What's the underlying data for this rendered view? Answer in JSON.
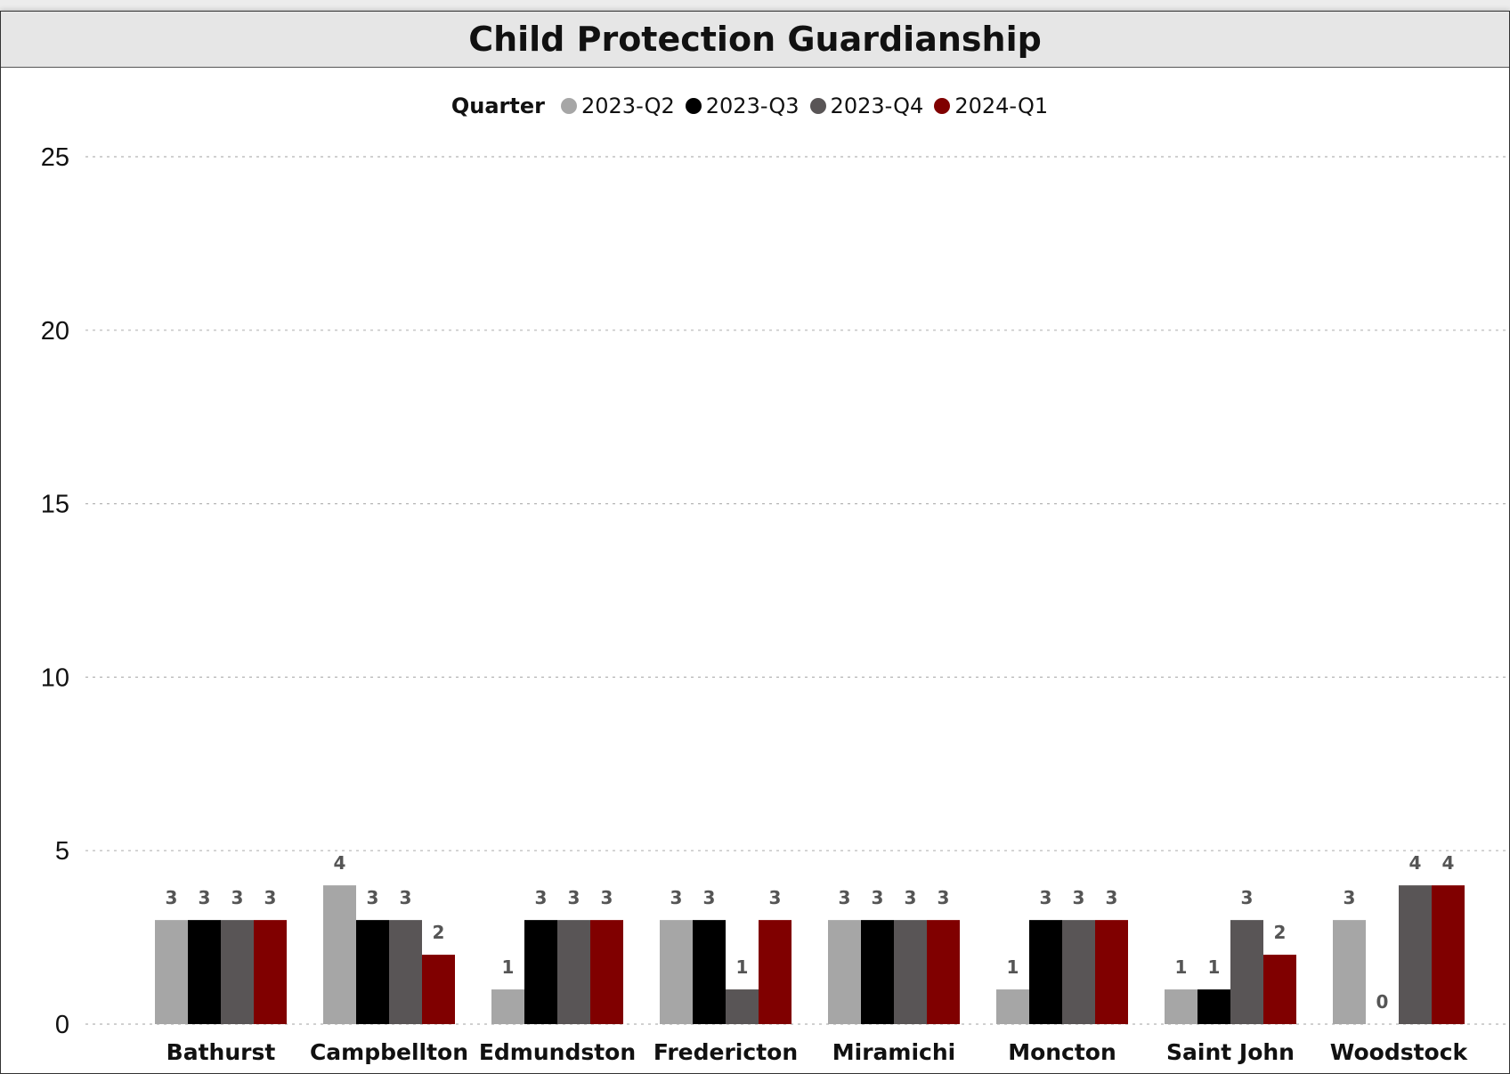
{
  "title": "Child Protection Guardianship",
  "legend": {
    "title": "Quarter",
    "items": [
      {
        "label": "2023-Q2",
        "color": "#a6a6a6"
      },
      {
        "label": "2023-Q3",
        "color": "#000000"
      },
      {
        "label": "2023-Q4",
        "color": "#595556"
      },
      {
        "label": "2024-Q1",
        "color": "#800000"
      }
    ]
  },
  "chart_data": {
    "type": "bar",
    "title": "Child Protection Guardianship",
    "xlabel": "",
    "ylabel": "",
    "ylim": [
      0,
      25
    ],
    "yticks": [
      0,
      5,
      10,
      15,
      20,
      25
    ],
    "grid": true,
    "legend_position": "top-center",
    "categories": [
      "Bathurst",
      "Campbellton",
      "Edmundston",
      "Fredericton",
      "Miramichi",
      "Moncton",
      "Saint John",
      "Woodstock"
    ],
    "series": [
      {
        "name": "2023-Q2",
        "color": "#a6a6a6",
        "values": [
          3,
          4,
          1,
          3,
          3,
          1,
          1,
          3
        ]
      },
      {
        "name": "2023-Q3",
        "color": "#000000",
        "values": [
          3,
          3,
          3,
          3,
          3,
          3,
          1,
          0
        ]
      },
      {
        "name": "2023-Q4",
        "color": "#595556",
        "values": [
          3,
          3,
          3,
          1,
          3,
          3,
          3,
          4
        ]
      },
      {
        "name": "2024-Q1",
        "color": "#800000",
        "values": [
          3,
          2,
          3,
          3,
          3,
          3,
          2,
          4
        ]
      }
    ]
  }
}
